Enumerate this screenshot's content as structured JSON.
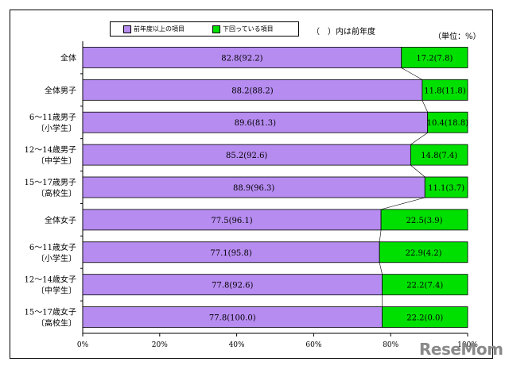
{
  "chart_data": {
    "type": "bar",
    "stacked": true,
    "orientation": "horizontal",
    "categories": [
      [
        "全体"
      ],
      [
        "全体男子"
      ],
      [
        "6～11歳男子",
        "〔小学生〕"
      ],
      [
        "12～14歳男子",
        "〔中学生〕"
      ],
      [
        "15～17歳男子",
        "〔高校生〕"
      ],
      [
        "全体女子"
      ],
      [
        "6～11歳女子",
        "〔小学生〕"
      ],
      [
        "12～14歳女子",
        "〔中学生〕"
      ],
      [
        "15～17歳女子",
        "〔高校生〕"
      ]
    ],
    "series": [
      {
        "name": "前年度以上の項目",
        "color": "#b68cf0",
        "values": [
          82.8,
          88.2,
          89.6,
          85.2,
          88.9,
          77.5,
          77.1,
          77.8,
          77.8
        ],
        "labels": [
          "82.8(92.2)",
          "88.2(88.2)",
          "89.6(81.3)",
          "85.2(92.6)",
          "88.9(96.3)",
          "77.5(96.1)",
          "77.1(95.8)",
          "77.8(92.6)",
          "77.8(100.0)"
        ]
      },
      {
        "name": "下回っている項目",
        "color": "#00e000",
        "values": [
          17.2,
          11.8,
          10.4,
          14.8,
          11.1,
          22.5,
          22.9,
          22.2,
          22.2
        ],
        "labels": [
          "17.2(7.8)",
          "11.8(11.8)",
          "10.4(18.8)",
          "14.8(7.4)",
          "11.1(3.7)",
          "22.5(3.9)",
          "22.9(4.2)",
          "22.2(7.4)",
          "22.2(0.0)"
        ]
      }
    ],
    "xlim": [
      0,
      100
    ],
    "x_ticks": [
      "0%",
      "20%",
      "40%",
      "60%",
      "80%",
      "100%"
    ],
    "legend_position": "top",
    "grid": false
  },
  "notes": {
    "previous_year": "（　）内は前年度",
    "unit": "（単位：%）"
  },
  "watermark": "ReseMom"
}
